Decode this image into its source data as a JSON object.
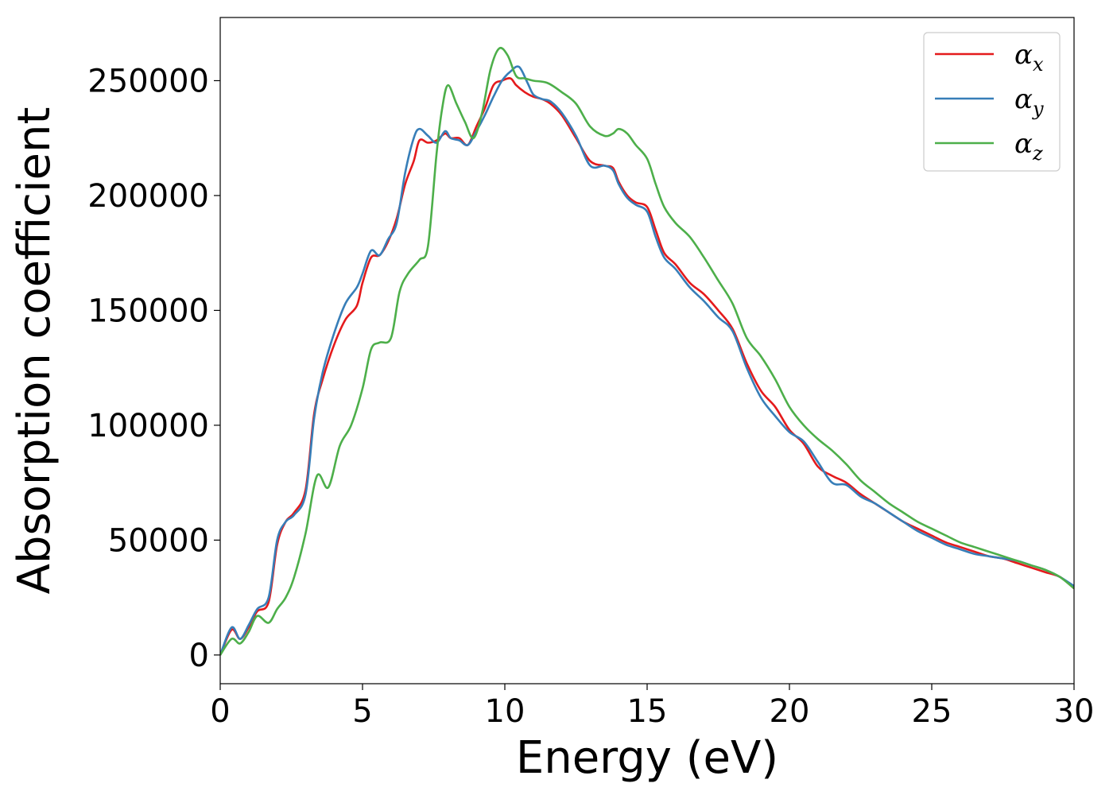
{
  "chart_data": {
    "type": "line",
    "title": "",
    "xlabel": "Energy (eV)",
    "ylabel": "Absorption coefficient",
    "xlim": [
      0,
      30
    ],
    "ylim": [
      -12500,
      277500
    ],
    "xticks": [
      0,
      5,
      10,
      15,
      20,
      25,
      30
    ],
    "xtick_labels": [
      "0",
      "5",
      "10",
      "15",
      "20",
      "25",
      "30"
    ],
    "yticks": [
      0,
      50000,
      100000,
      150000,
      200000,
      250000
    ],
    "ytick_labels": [
      "0",
      "50000",
      "100000",
      "150000",
      "200000",
      "250000"
    ],
    "grid": false,
    "legend_position": "top-right",
    "series": [
      {
        "name": "α_x",
        "legend_symbol": "α",
        "legend_sub": "x",
        "color": "#e41a1c",
        "x": [
          0,
          0.4,
          0.7,
          1.0,
          1.3,
          1.7,
          2.0,
          2.3,
          2.6,
          3.0,
          3.3,
          3.6,
          4.0,
          4.4,
          4.8,
          5.0,
          5.3,
          5.6,
          5.9,
          6.2,
          6.5,
          6.8,
          7.0,
          7.3,
          7.6,
          7.9,
          8.1,
          8.4,
          8.7,
          9.0,
          9.3,
          9.6,
          9.9,
          10.2,
          10.4,
          10.7,
          11.0,
          11.3,
          11.6,
          12.0,
          12.5,
          13.0,
          13.5,
          13.8,
          14.0,
          14.3,
          14.6,
          15.0,
          15.3,
          15.6,
          16.0,
          16.5,
          17.0,
          17.5,
          18.0,
          18.5,
          19.0,
          19.5,
          20.0,
          20.5,
          21.0,
          21.5,
          22.0,
          22.5,
          23.0,
          23.5,
          24.0,
          24.5,
          25.0,
          25.5,
          26.0,
          26.5,
          27.0,
          27.5,
          28.0,
          28.5,
          29.0,
          29.5,
          30.0
        ],
        "y": [
          0,
          11000,
          7000,
          12000,
          19000,
          23000,
          48000,
          58000,
          62000,
          72000,
          105000,
          120000,
          135000,
          146000,
          152000,
          162000,
          173000,
          174000,
          180000,
          190000,
          205000,
          215000,
          224000,
          223000,
          224000,
          227000,
          225000,
          225000,
          222000,
          230000,
          238000,
          248000,
          250000,
          251000,
          248000,
          245000,
          243000,
          242000,
          240000,
          235000,
          225000,
          215000,
          213000,
          212000,
          206000,
          200000,
          197000,
          195000,
          185000,
          175000,
          170000,
          162000,
          157000,
          150000,
          142000,
          127000,
          115000,
          108000,
          98000,
          92000,
          82000,
          78000,
          75000,
          70000,
          66000,
          62000,
          58000,
          55000,
          52000,
          49000,
          47000,
          45000,
          43000,
          42000,
          40000,
          38000,
          36000,
          34000,
          29000
        ]
      },
      {
        "name": "α_y",
        "legend_symbol": "α",
        "legend_sub": "y",
        "color": "#377eb8",
        "x": [
          0,
          0.4,
          0.7,
          1.0,
          1.3,
          1.7,
          2.0,
          2.3,
          2.6,
          3.0,
          3.3,
          3.6,
          4.0,
          4.4,
          4.8,
          5.0,
          5.3,
          5.6,
          5.9,
          6.2,
          6.5,
          6.8,
          7.0,
          7.3,
          7.6,
          7.9,
          8.1,
          8.4,
          8.7,
          9.0,
          9.3,
          9.6,
          9.9,
          10.2,
          10.5,
          10.8,
          11.0,
          11.3,
          11.6,
          12.0,
          12.5,
          13.0,
          13.5,
          13.8,
          14.0,
          14.3,
          14.6,
          15.0,
          15.3,
          15.6,
          16.0,
          16.5,
          17.0,
          17.5,
          18.0,
          18.5,
          19.0,
          19.5,
          20.0,
          20.5,
          21.0,
          21.5,
          22.0,
          22.5,
          23.0,
          23.5,
          24.0,
          24.5,
          25.0,
          25.5,
          26.0,
          26.5,
          27.0,
          27.5,
          28.0,
          28.5,
          29.0,
          29.5,
          30.0
        ],
        "y": [
          0,
          12000,
          7000,
          13000,
          20000,
          25000,
          50000,
          58000,
          61000,
          70000,
          103000,
          123000,
          140000,
          153000,
          160000,
          166000,
          176000,
          174000,
          181000,
          188000,
          210000,
          225000,
          229000,
          226000,
          223000,
          228000,
          225000,
          224000,
          222000,
          228000,
          235000,
          243000,
          250000,
          254000,
          256000,
          249000,
          244000,
          242000,
          241000,
          236000,
          226000,
          213000,
          213000,
          211000,
          205000,
          199000,
          196000,
          193000,
          182000,
          173000,
          168000,
          160000,
          154000,
          147000,
          141000,
          125000,
          112000,
          104000,
          97000,
          93000,
          84000,
          75000,
          74000,
          69000,
          66000,
          62000,
          58000,
          54000,
          51000,
          48000,
          46000,
          44000,
          43000,
          42000,
          41000,
          39000,
          37000,
          34000,
          30000
        ]
      },
      {
        "name": "α_z",
        "legend_symbol": "α",
        "legend_sub": "z",
        "color": "#4daf4a",
        "x": [
          0,
          0.4,
          0.7,
          1.0,
          1.3,
          1.7,
          2.0,
          2.3,
          2.6,
          3.0,
          3.4,
          3.8,
          4.2,
          4.6,
          5.0,
          5.3,
          5.6,
          6.0,
          6.3,
          6.6,
          7.0,
          7.3,
          7.6,
          7.8,
          8.0,
          8.3,
          8.6,
          8.9,
          9.2,
          9.5,
          9.8,
          10.1,
          10.4,
          10.7,
          11.0,
          11.5,
          12.0,
          12.5,
          13.0,
          13.5,
          13.8,
          14.0,
          14.3,
          14.6,
          15.0,
          15.3,
          15.6,
          16.0,
          16.5,
          17.0,
          17.5,
          18.0,
          18.5,
          19.0,
          19.5,
          20.0,
          20.5,
          21.0,
          21.5,
          22.0,
          22.5,
          23.0,
          23.5,
          24.0,
          24.5,
          25.0,
          25.5,
          26.0,
          26.5,
          27.0,
          27.5,
          28.0,
          28.5,
          29.0,
          29.5,
          30.0
        ],
        "y": [
          0,
          7000,
          5000,
          10000,
          17000,
          14000,
          20000,
          25000,
          34000,
          53000,
          78000,
          73000,
          91000,
          100000,
          116000,
          133000,
          136000,
          138000,
          158000,
          166000,
          172000,
          178000,
          218000,
          238000,
          248000,
          240000,
          232000,
          225000,
          236000,
          255000,
          264000,
          261000,
          252000,
          251000,
          250000,
          249000,
          245000,
          240000,
          230000,
          226000,
          227000,
          229000,
          227000,
          222000,
          216000,
          205000,
          195000,
          188000,
          182000,
          173000,
          163000,
          153000,
          138000,
          130000,
          120000,
          108000,
          100000,
          94000,
          89000,
          83000,
          76000,
          71000,
          66000,
          62000,
          58000,
          55000,
          52000,
          49000,
          47000,
          45000,
          43000,
          41000,
          39000,
          37000,
          34000,
          29000
        ]
      }
    ]
  }
}
